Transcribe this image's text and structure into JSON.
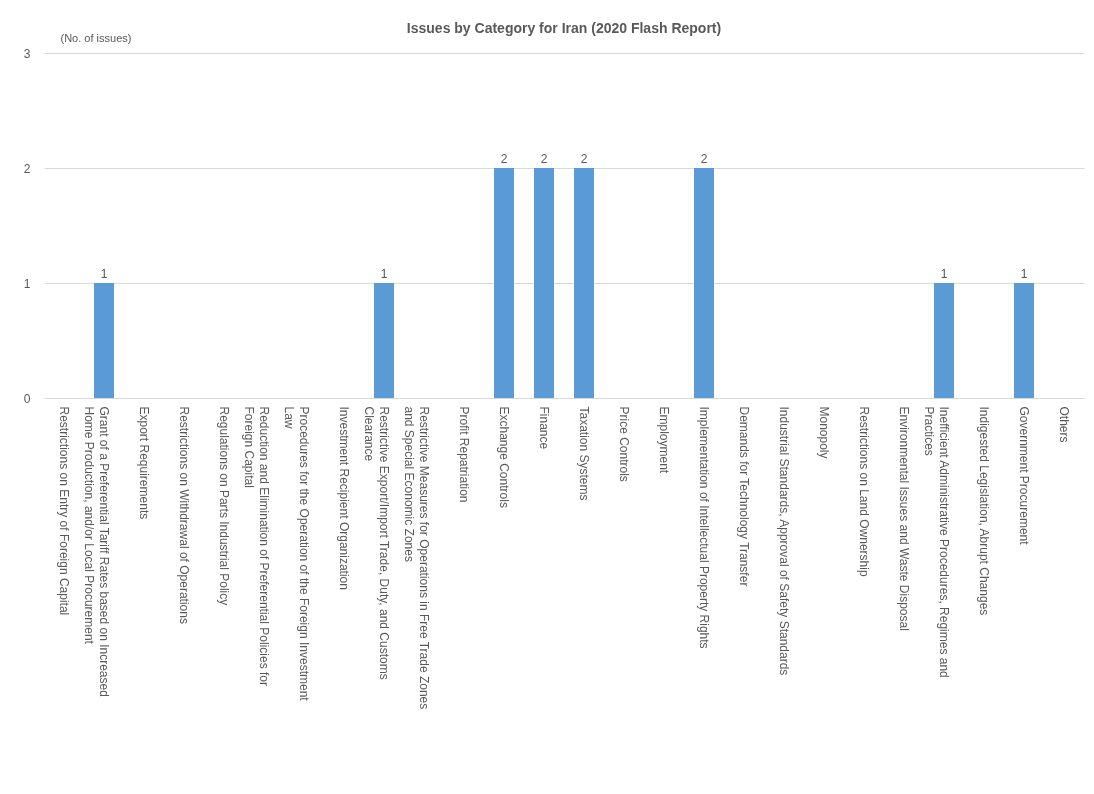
{
  "chart_data": {
    "type": "bar",
    "title": "Issues by Category for Iran (2020 Flash Report)",
    "ylabel": "(No. of issues)",
    "categories": [
      "Restrictions on Entry of Foreign Capital",
      "Grant of a Preferential Tariff Rates based on Increased Home Production, and/or Local Procurement",
      "Export Requirements",
      "Restrictions on Withdrawal of Operations",
      "Regulations on Parts Industrial Policy",
      "Reduction and Elimination of Preferential Policies for Foreign Capital",
      "Procedures for the Operation of the Foreign Investment Law",
      "Investment Recipient Organization",
      "Restrictive Export/Import Trade, Duty, and Customs Clearance",
      "Restrictive Measures for Operations in Free Trade Zones and Special Economic Zones",
      "Profit Repatriation",
      "Exchange Controls",
      "Finance",
      "Taxation Systems",
      "Price Controls",
      "Employment",
      "Implementation of Intellectual Property Rights",
      "Demands for Technology Transfer",
      "Industrial Standards, Approval of Safety Standards",
      "Monopoly",
      "Restrictions on Land Ownership",
      "Environmental Issues and Waste Disposal",
      "Inefficient Administrative Procedures, Regimes and Practices",
      "Indigested Legislation, Abrupt Changes",
      "Government Procurement",
      "Others"
    ],
    "values": [
      0,
      1,
      0,
      0,
      0,
      0,
      0,
      0,
      1,
      0,
      0,
      2,
      2,
      2,
      0,
      0,
      2,
      0,
      0,
      0,
      0,
      0,
      1,
      0,
      1,
      0
    ],
    "value_labels": [
      null,
      "1",
      null,
      null,
      null,
      null,
      null,
      null,
      "1",
      null,
      null,
      "2",
      "2",
      "2",
      null,
      null,
      "2",
      null,
      null,
      null,
      null,
      null,
      "1",
      null,
      "1",
      null
    ],
    "color": "#5b9bd5",
    "ylim": [
      0,
      3
    ],
    "yticks": [
      0,
      1,
      2,
      3
    ],
    "grid": "y"
  }
}
